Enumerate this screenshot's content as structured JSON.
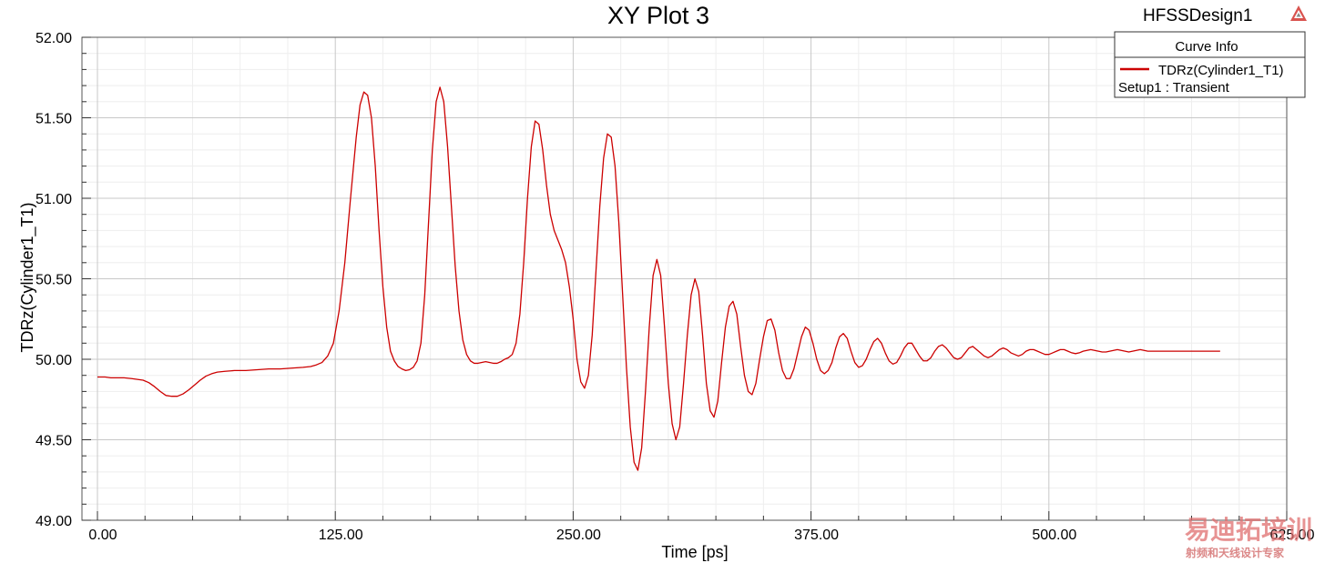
{
  "chart_data": {
    "type": "line",
    "title": "XY Plot 3",
    "design_name": "HFSSDesign1",
    "xlabel": "Time [ps]",
    "ylabel": "TDRz(Cylinder1_T1)",
    "xlim": [
      0,
      625
    ],
    "ylim": [
      49.0,
      52.0
    ],
    "x_ticks": [
      0,
      125,
      250,
      375,
      500,
      625
    ],
    "x_tick_labels": [
      "0.00",
      "125.00",
      "250.00",
      "375.00",
      "500.00",
      "625.00"
    ],
    "y_ticks": [
      49.0,
      49.5,
      50.0,
      50.5,
      51.0,
      51.5,
      52.0
    ],
    "y_tick_labels": [
      "49.00",
      "49.50",
      "50.00",
      "50.50",
      "51.00",
      "51.50",
      "52.00"
    ],
    "grid": true,
    "legend": {
      "title": "Curve Info",
      "placement": "top-right",
      "entries": [
        {
          "label": "TDRz(Cylinder1_T1)",
          "sublabel": "Setup1 : Transient",
          "color": "#cc0000"
        }
      ]
    },
    "series": [
      {
        "name": "TDRz(Cylinder1_T1)",
        "color": "#cc0000",
        "points": [
          [
            0,
            49.89
          ],
          [
            4,
            49.89
          ],
          [
            7,
            49.885
          ],
          [
            10,
            49.885
          ],
          [
            14,
            49.885
          ],
          [
            18,
            49.88
          ],
          [
            21,
            49.875
          ],
          [
            24,
            49.87
          ],
          [
            27,
            49.855
          ],
          [
            30,
            49.83
          ],
          [
            33,
            49.8
          ],
          [
            36,
            49.775
          ],
          [
            39,
            49.77
          ],
          [
            42,
            49.77
          ],
          [
            45,
            49.785
          ],
          [
            48,
            49.81
          ],
          [
            51,
            49.84
          ],
          [
            54,
            49.87
          ],
          [
            57,
            49.895
          ],
          [
            60,
            49.91
          ],
          [
            63,
            49.92
          ],
          [
            67,
            49.925
          ],
          [
            72,
            49.93
          ],
          [
            78,
            49.93
          ],
          [
            84,
            49.935
          ],
          [
            90,
            49.94
          ],
          [
            96,
            49.94
          ],
          [
            102,
            49.945
          ],
          [
            108,
            49.95
          ],
          [
            112,
            49.955
          ],
          [
            115,
            49.965
          ],
          [
            118,
            49.98
          ],
          [
            121,
            50.02
          ],
          [
            124,
            50.1
          ],
          [
            127,
            50.3
          ],
          [
            130,
            50.6
          ],
          [
            133,
            51.0
          ],
          [
            136,
            51.38
          ],
          [
            138,
            51.58
          ],
          [
            140,
            51.66
          ],
          [
            142,
            51.64
          ],
          [
            144,
            51.5
          ],
          [
            146,
            51.2
          ],
          [
            148,
            50.8
          ],
          [
            150,
            50.45
          ],
          [
            152,
            50.2
          ],
          [
            154,
            50.05
          ],
          [
            156,
            49.99
          ],
          [
            158,
            49.955
          ],
          [
            160,
            49.94
          ],
          [
            162,
            49.93
          ],
          [
            164,
            49.935
          ],
          [
            166,
            49.95
          ],
          [
            168,
            49.99
          ],
          [
            170,
            50.1
          ],
          [
            172,
            50.4
          ],
          [
            174,
            50.85
          ],
          [
            176,
            51.3
          ],
          [
            178,
            51.6
          ],
          [
            180,
            51.69
          ],
          [
            182,
            51.6
          ],
          [
            184,
            51.32
          ],
          [
            186,
            50.95
          ],
          [
            188,
            50.58
          ],
          [
            190,
            50.3
          ],
          [
            192,
            50.12
          ],
          [
            194,
            50.03
          ],
          [
            196,
            49.99
          ],
          [
            198,
            49.975
          ],
          [
            200,
            49.975
          ],
          [
            202,
            49.98
          ],
          [
            204,
            49.985
          ],
          [
            206,
            49.98
          ],
          [
            208,
            49.975
          ],
          [
            210,
            49.975
          ],
          [
            212,
            49.985
          ],
          [
            214,
            50.0
          ],
          [
            216,
            50.01
          ],
          [
            218,
            50.03
          ],
          [
            220,
            50.1
          ],
          [
            222,
            50.28
          ],
          [
            224,
            50.6
          ],
          [
            226,
            51.0
          ],
          [
            228,
            51.32
          ],
          [
            230,
            51.48
          ],
          [
            232,
            51.46
          ],
          [
            234,
            51.3
          ],
          [
            236,
            51.08
          ],
          [
            238,
            50.9
          ],
          [
            240,
            50.8
          ],
          [
            242,
            50.74
          ],
          [
            244,
            50.68
          ],
          [
            246,
            50.6
          ],
          [
            248,
            50.45
          ],
          [
            250,
            50.25
          ],
          [
            252,
            50.0
          ],
          [
            254,
            49.86
          ],
          [
            256,
            49.82
          ],
          [
            258,
            49.9
          ],
          [
            260,
            50.15
          ],
          [
            262,
            50.55
          ],
          [
            264,
            50.95
          ],
          [
            266,
            51.25
          ],
          [
            268,
            51.4
          ],
          [
            270,
            51.38
          ],
          [
            272,
            51.2
          ],
          [
            274,
            50.85
          ],
          [
            276,
            50.4
          ],
          [
            278,
            49.95
          ],
          [
            280,
            49.58
          ],
          [
            282,
            49.36
          ],
          [
            284,
            49.31
          ],
          [
            286,
            49.45
          ],
          [
            288,
            49.8
          ],
          [
            290,
            50.2
          ],
          [
            292,
            50.52
          ],
          [
            294,
            50.62
          ],
          [
            296,
            50.52
          ],
          [
            298,
            50.2
          ],
          [
            300,
            49.85
          ],
          [
            302,
            49.6
          ],
          [
            304,
            49.5
          ],
          [
            306,
            49.58
          ],
          [
            308,
            49.85
          ],
          [
            310,
            50.15
          ],
          [
            312,
            50.4
          ],
          [
            314,
            50.5
          ],
          [
            316,
            50.42
          ],
          [
            318,
            50.15
          ],
          [
            320,
            49.85
          ],
          [
            322,
            49.68
          ],
          [
            324,
            49.64
          ],
          [
            326,
            49.74
          ],
          [
            328,
            49.98
          ],
          [
            330,
            50.2
          ],
          [
            332,
            50.33
          ],
          [
            334,
            50.36
          ],
          [
            336,
            50.28
          ],
          [
            338,
            50.08
          ],
          [
            340,
            49.9
          ],
          [
            342,
            49.8
          ],
          [
            344,
            49.78
          ],
          [
            346,
            49.85
          ],
          [
            348,
            50.0
          ],
          [
            350,
            50.14
          ],
          [
            352,
            50.24
          ],
          [
            354,
            50.25
          ],
          [
            356,
            50.18
          ],
          [
            358,
            50.04
          ],
          [
            360,
            49.93
          ],
          [
            362,
            49.88
          ],
          [
            364,
            49.88
          ],
          [
            366,
            49.94
          ],
          [
            368,
            50.04
          ],
          [
            370,
            50.14
          ],
          [
            372,
            50.2
          ],
          [
            374,
            50.18
          ],
          [
            376,
            50.1
          ],
          [
            378,
            50.0
          ],
          [
            380,
            49.93
          ],
          [
            382,
            49.91
          ],
          [
            384,
            49.93
          ],
          [
            386,
            49.98
          ],
          [
            388,
            50.07
          ],
          [
            390,
            50.14
          ],
          [
            392,
            50.16
          ],
          [
            394,
            50.13
          ],
          [
            396,
            50.05
          ],
          [
            398,
            49.98
          ],
          [
            400,
            49.95
          ],
          [
            402,
            49.96
          ],
          [
            404,
            50.0
          ],
          [
            406,
            50.06
          ],
          [
            408,
            50.11
          ],
          [
            410,
            50.13
          ],
          [
            412,
            50.1
          ],
          [
            414,
            50.04
          ],
          [
            416,
            49.99
          ],
          [
            418,
            49.97
          ],
          [
            420,
            49.98
          ],
          [
            422,
            50.02
          ],
          [
            424,
            50.07
          ],
          [
            426,
            50.1
          ],
          [
            428,
            50.1
          ],
          [
            430,
            50.06
          ],
          [
            432,
            50.02
          ],
          [
            434,
            49.99
          ],
          [
            436,
            49.99
          ],
          [
            438,
            50.01
          ],
          [
            440,
            50.05
          ],
          [
            442,
            50.08
          ],
          [
            444,
            50.09
          ],
          [
            446,
            50.07
          ],
          [
            448,
            50.04
          ],
          [
            450,
            50.01
          ],
          [
            452,
            50.0
          ],
          [
            454,
            50.01
          ],
          [
            456,
            50.04
          ],
          [
            458,
            50.07
          ],
          [
            460,
            50.08
          ],
          [
            462,
            50.06
          ],
          [
            464,
            50.04
          ],
          [
            466,
            50.02
          ],
          [
            468,
            50.01
          ],
          [
            470,
            50.02
          ],
          [
            472,
            50.04
          ],
          [
            474,
            50.06
          ],
          [
            476,
            50.07
          ],
          [
            478,
            50.06
          ],
          [
            480,
            50.04
          ],
          [
            482,
            50.03
          ],
          [
            484,
            50.02
          ],
          [
            486,
            50.03
          ],
          [
            488,
            50.05
          ],
          [
            490,
            50.06
          ],
          [
            492,
            50.06
          ],
          [
            494,
            50.05
          ],
          [
            496,
            50.04
          ],
          [
            498,
            50.03
          ],
          [
            500,
            50.03
          ],
          [
            502,
            50.04
          ],
          [
            504,
            50.05
          ],
          [
            506,
            50.06
          ],
          [
            508,
            50.06
          ],
          [
            510,
            50.05
          ],
          [
            512,
            50.04
          ],
          [
            514,
            50.035
          ],
          [
            516,
            50.04
          ],
          [
            518,
            50.05
          ],
          [
            520,
            50.055
          ],
          [
            522,
            50.06
          ],
          [
            524,
            50.055
          ],
          [
            526,
            50.05
          ],
          [
            528,
            50.045
          ],
          [
            530,
            50.045
          ],
          [
            532,
            50.05
          ],
          [
            534,
            50.055
          ],
          [
            536,
            50.06
          ],
          [
            538,
            50.055
          ],
          [
            540,
            50.05
          ],
          [
            542,
            50.045
          ],
          [
            544,
            50.05
          ],
          [
            546,
            50.055
          ],
          [
            548,
            50.06
          ],
          [
            550,
            50.055
          ],
          [
            552,
            50.05
          ],
          [
            554,
            50.05
          ],
          [
            556,
            50.05
          ],
          [
            560,
            50.05
          ],
          [
            564,
            50.05
          ],
          [
            568,
            50.05
          ],
          [
            572,
            50.05
          ],
          [
            576,
            50.05
          ],
          [
            580,
            50.05
          ],
          [
            585,
            50.05
          ],
          [
            590,
            50.05
          ]
        ]
      }
    ]
  },
  "watermark": {
    "main": "易迪拓培训",
    "sub": "射频和天线设计专家"
  }
}
